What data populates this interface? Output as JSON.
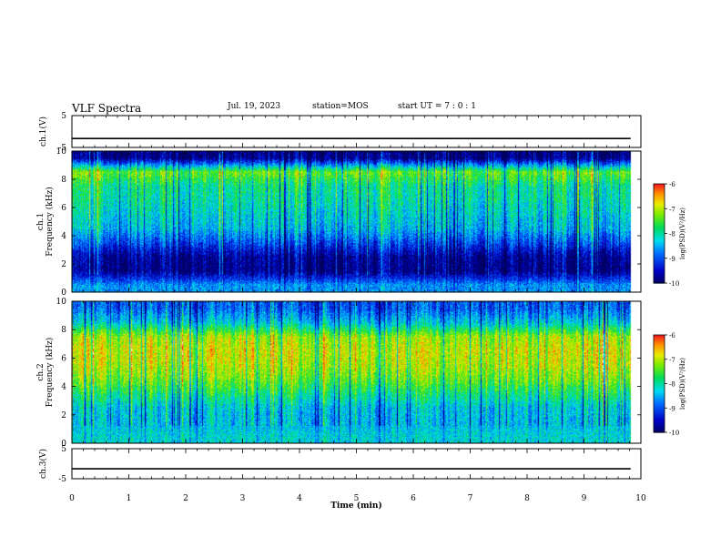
{
  "header": {
    "title": "VLF Spectra",
    "date": "Jul. 19, 2023",
    "station": "station=MOS",
    "start": "start UT =  7 : 0 : 1"
  },
  "chart_data": [
    {
      "type": "line",
      "panel": "ch1-waveform",
      "ylabel": "ch.1(V)",
      "ylim": [
        -5,
        5
      ],
      "yticks": [
        "5",
        "-5"
      ],
      "xlim": [
        0,
        10
      ],
      "series": [
        {
          "x": [
            0,
            9.82
          ],
          "values": [
            -2.2,
            -2.2
          ]
        }
      ]
    },
    {
      "type": "heatmap",
      "panel": "ch1-spectrogram",
      "ylabel": "ch.1 Frequency (kHz)",
      "ylim": [
        0,
        10
      ],
      "yticks": [
        "0",
        "2",
        "4",
        "6",
        "8",
        "10"
      ],
      "xlim": [
        0,
        10
      ],
      "colorbar": {
        "label": "log(PSD)(V²/Hz)",
        "range": [
          -10,
          -6
        ],
        "ticks": [
          "-6",
          "-7",
          "-8",
          "-9",
          "-10"
        ]
      },
      "freq_kHz": [
        0.5,
        1.5,
        2.5,
        3.5,
        4.5,
        5.5,
        6.5,
        7.5,
        8.5,
        9.5
      ],
      "log_psd_profile": [
        -8.6,
        -9.8,
        -9.7,
        -9.0,
        -8.4,
        -8.2,
        -8.0,
        -7.9,
        -7.3,
        -9.8
      ]
    },
    {
      "type": "heatmap",
      "panel": "ch2-spectrogram",
      "ylabel": "ch.2 Frequency (kHz)",
      "ylim": [
        0,
        10
      ],
      "yticks": [
        "0",
        "2",
        "4",
        "6",
        "8",
        "10"
      ],
      "xlim": [
        0,
        10
      ],
      "colorbar": {
        "label": "log(PSD)(V²/Hz)",
        "range": [
          -10,
          -6
        ],
        "ticks": [
          "-6",
          "-7",
          "-8",
          "-9",
          "-10"
        ]
      },
      "freq_kHz": [
        0.5,
        1.5,
        2.5,
        3.5,
        4.5,
        5.5,
        6.5,
        7.5,
        8.5,
        9.5
      ],
      "log_psd_profile": [
        -8.2,
        -8.4,
        -8.3,
        -7.8,
        -7.3,
        -7.0,
        -6.9,
        -7.1,
        -8.3,
        -8.9
      ]
    },
    {
      "type": "line",
      "panel": "ch3-waveform",
      "ylabel": "ch.3(V)",
      "ylim": [
        -5,
        5
      ],
      "yticks": [
        "5",
        "-5"
      ],
      "xlabel": "Time (min)",
      "xlim": [
        0,
        10
      ],
      "xticks": [
        "0",
        "1",
        "2",
        "3",
        "4",
        "5",
        "6",
        "7",
        "8",
        "9",
        "10"
      ],
      "series": [
        {
          "x": [
            0,
            9.82
          ],
          "values": [
            -1.7,
            -1.7
          ]
        }
      ]
    }
  ]
}
